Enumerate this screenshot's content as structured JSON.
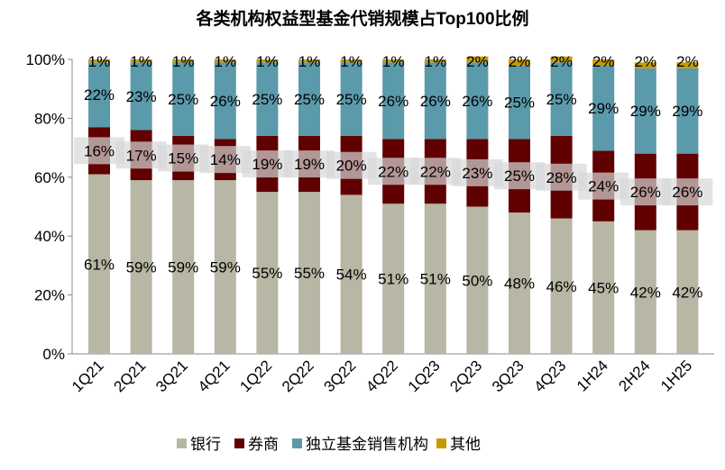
{
  "chart_data": {
    "type": "bar",
    "stacked": true,
    "title": "各类机构权益型基金代销规模占Top100比例",
    "xlabel": "",
    "ylabel": "",
    "ylim": [
      0,
      100
    ],
    "yticks": [
      "0%",
      "20%",
      "40%",
      "60%",
      "80%",
      "100%"
    ],
    "grid": false,
    "legend_position": "bottom",
    "categories": [
      "1Q21",
      "2Q21",
      "3Q21",
      "4Q21",
      "1Q22",
      "2Q22",
      "3Q22",
      "4Q22",
      "1Q23",
      "2Q23",
      "3Q23",
      "4Q23",
      "1H24",
      "2H24",
      "1H25"
    ],
    "series": [
      {
        "name": "银行",
        "color": "#b8b6a4",
        "values": [
          61,
          59,
          59,
          59,
          55,
          55,
          54,
          51,
          51,
          50,
          48,
          46,
          45,
          42,
          42
        ]
      },
      {
        "name": "券商",
        "color": "#600000",
        "values": [
          16,
          17,
          15,
          14,
          19,
          19,
          20,
          22,
          22,
          23,
          25,
          28,
          24,
          26,
          26
        ]
      },
      {
        "name": "独立基金销售机构",
        "color": "#5b9aaa",
        "values": [
          22,
          23,
          25,
          26,
          25,
          25,
          25,
          26,
          26,
          26,
          25,
          25,
          29,
          29,
          29
        ]
      },
      {
        "name": "其他",
        "color": "#c89a00",
        "values": [
          1,
          1,
          1,
          1,
          1,
          1,
          1,
          1,
          1,
          2,
          2,
          2,
          2,
          2,
          2
        ]
      }
    ]
  }
}
